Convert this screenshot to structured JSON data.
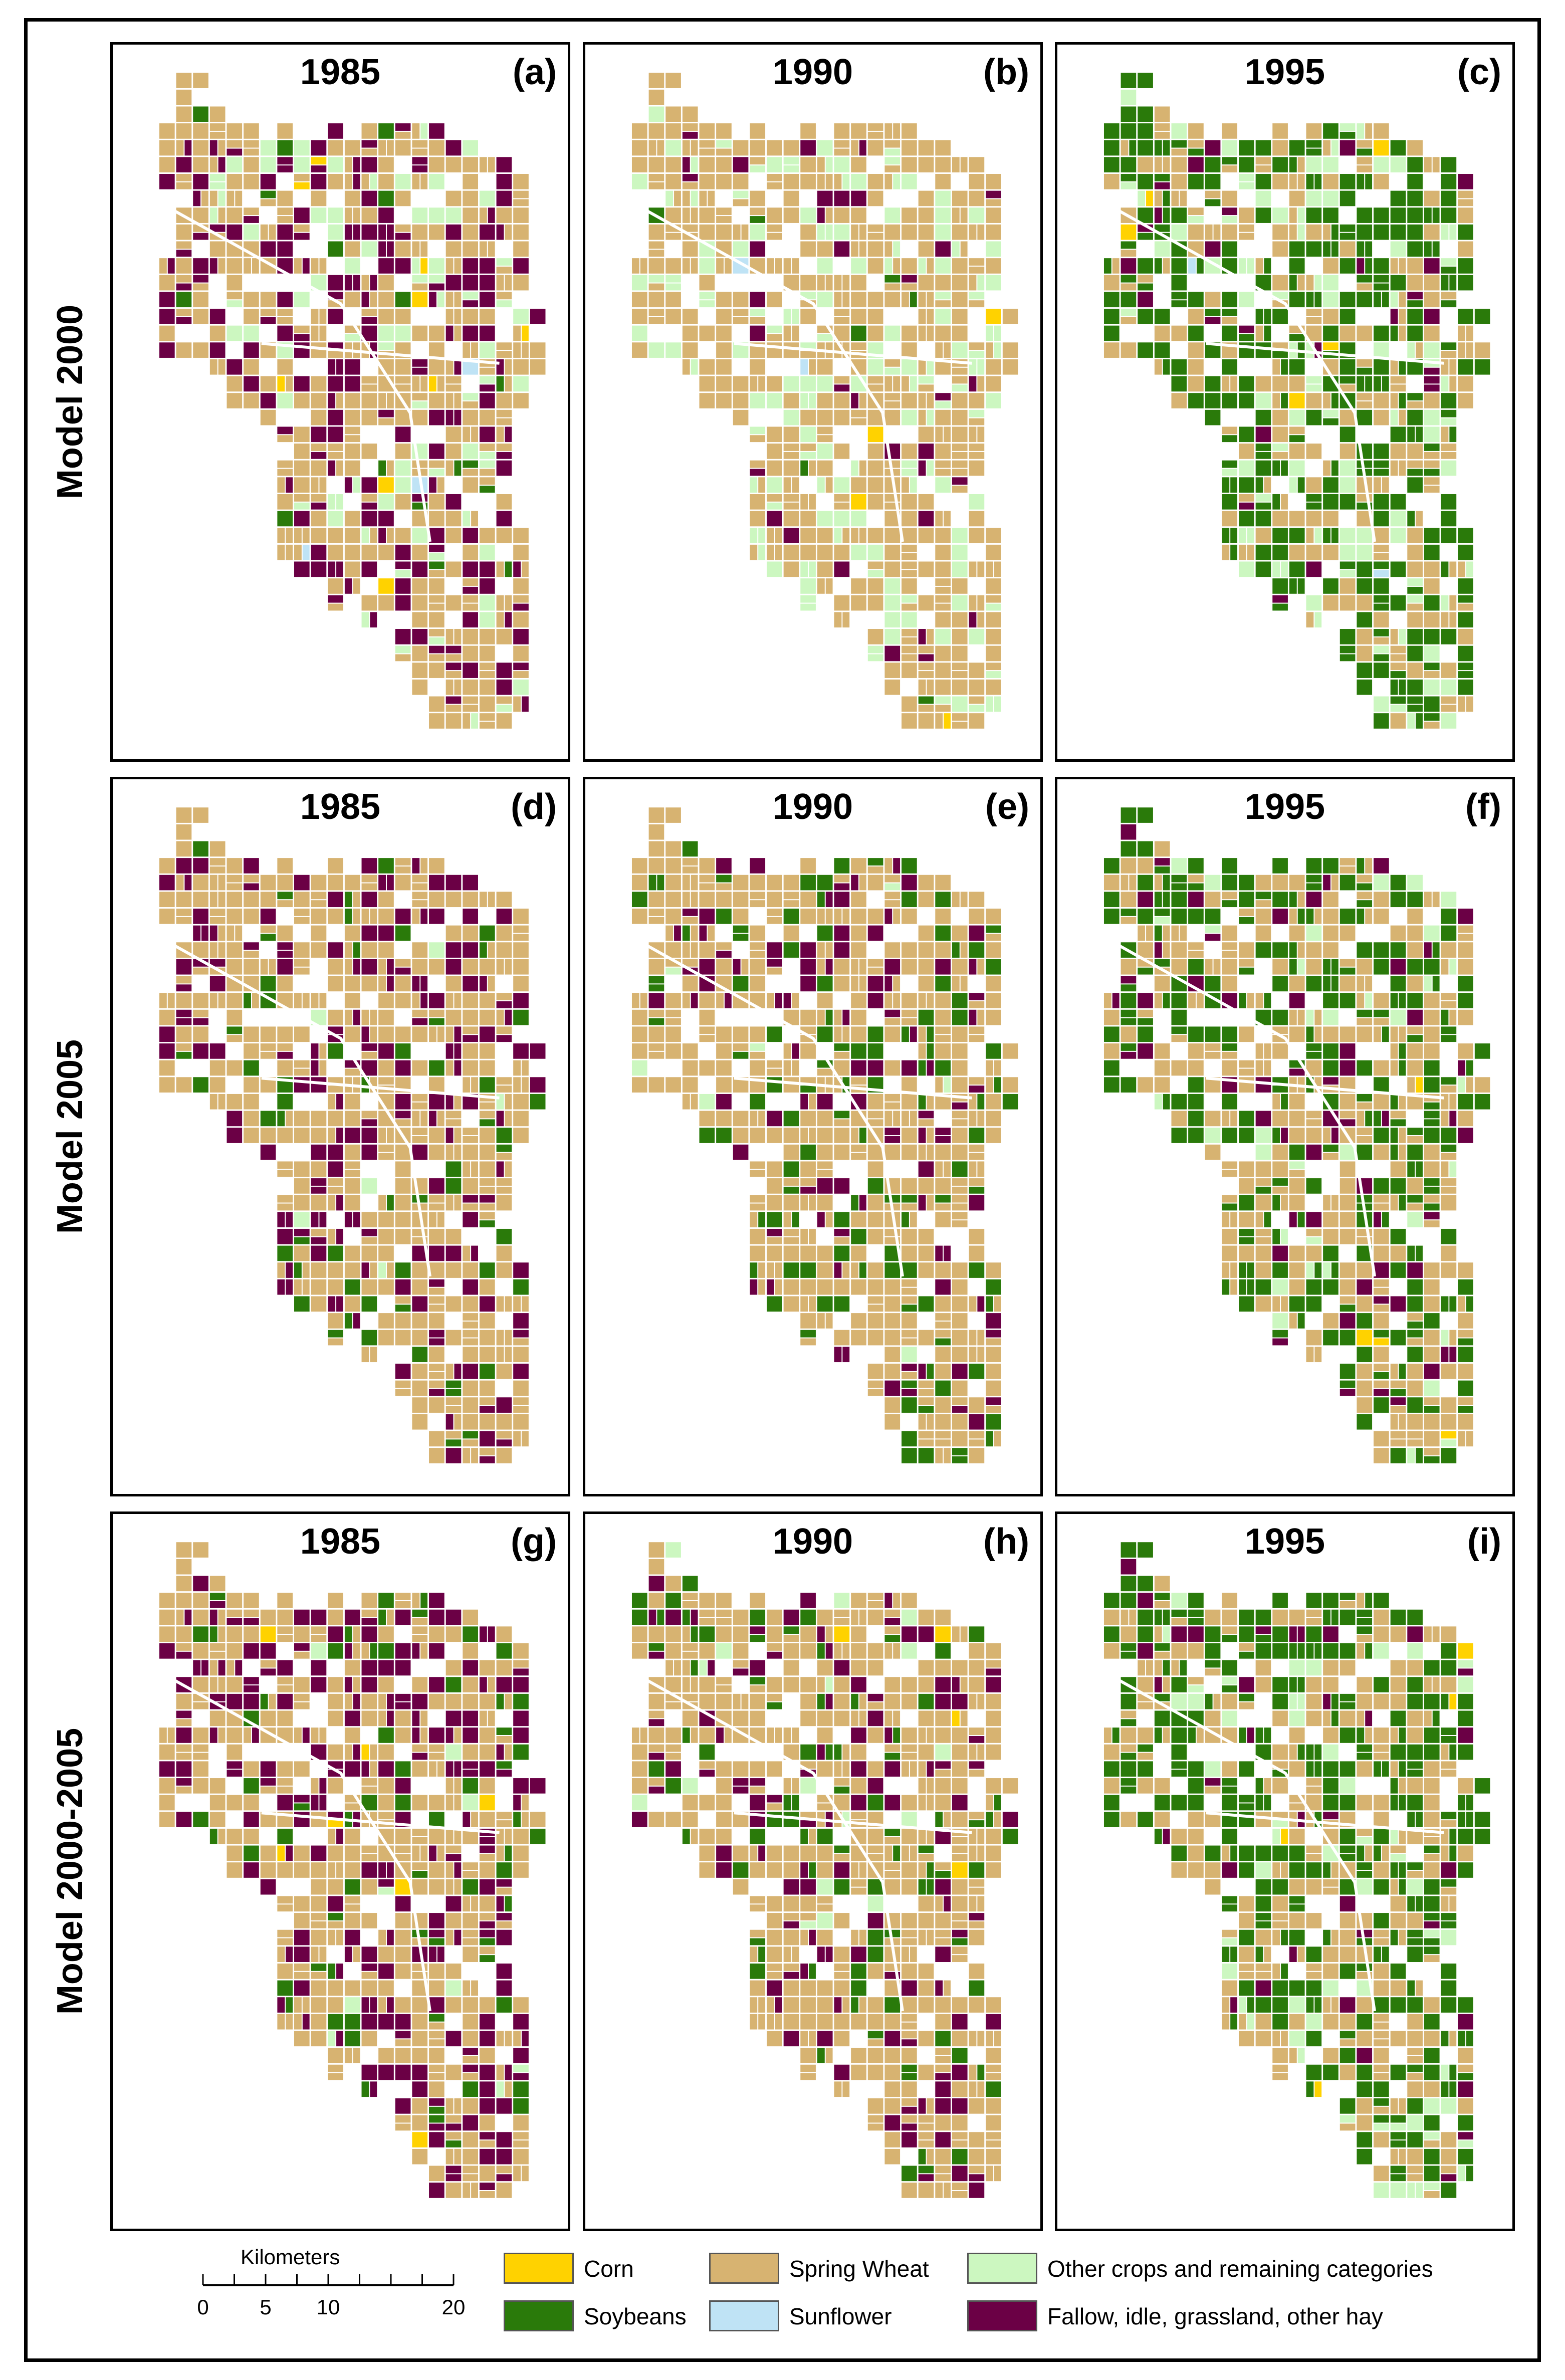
{
  "rows": [
    {
      "label": "Model 2000",
      "panels": [
        {
          "year": "1985",
          "letter": "(a)",
          "mix": [
            0.012,
            0.03,
            0.53,
            0.006,
            0.15,
            0.27
          ]
        },
        {
          "year": "1990",
          "letter": "(b)",
          "mix": [
            0.004,
            0.02,
            0.7,
            0.004,
            0.22,
            0.06
          ]
        },
        {
          "year": "1995",
          "letter": "(c)",
          "mix": [
            0.012,
            0.44,
            0.34,
            0.01,
            0.16,
            0.04
          ]
        }
      ]
    },
    {
      "label": "Model 2005",
      "panels": [
        {
          "year": "1985",
          "letter": "(d)",
          "mix": [
            0.0,
            0.1,
            0.62,
            0.0,
            0.01,
            0.27
          ]
        },
        {
          "year": "1990",
          "letter": "(e)",
          "mix": [
            0.0,
            0.18,
            0.67,
            0.0,
            0.01,
            0.14
          ]
        },
        {
          "year": "1995",
          "letter": "(f)",
          "mix": [
            0.004,
            0.38,
            0.5,
            0.0,
            0.04,
            0.08
          ]
        }
      ]
    },
    {
      "label": "Model 2000-2005",
      "panels": [
        {
          "year": "1985",
          "letter": "(g)",
          "mix": [
            0.006,
            0.1,
            0.58,
            0.0,
            0.01,
            0.3
          ]
        },
        {
          "year": "1990",
          "letter": "(h)",
          "mix": [
            0.004,
            0.16,
            0.68,
            0.0,
            0.02,
            0.14
          ]
        },
        {
          "year": "1995",
          "letter": "(i)",
          "mix": [
            0.006,
            0.45,
            0.4,
            0.0,
            0.08,
            0.06
          ]
        }
      ]
    }
  ],
  "legend": {
    "items": [
      {
        "label": "Corn",
        "color": "#ffd200"
      },
      {
        "label": "Soybeans",
        "color": "#2a7a0a"
      },
      {
        "label": "Spring Wheat",
        "color": "#d7b371"
      },
      {
        "label": "Sunflower",
        "color": "#bfe3f5"
      },
      {
        "label": "Other crops and remaining categories",
        "color": "#ccf7c0"
      },
      {
        "label": "Fallow, idle, grassland, other hay",
        "color": "#6b0045"
      }
    ],
    "scale_title": "Kilometers",
    "scale_ticks": [
      "0",
      "5",
      "10",
      "20"
    ],
    "scale_tick_values": [
      0,
      5,
      10,
      20
    ]
  }
}
